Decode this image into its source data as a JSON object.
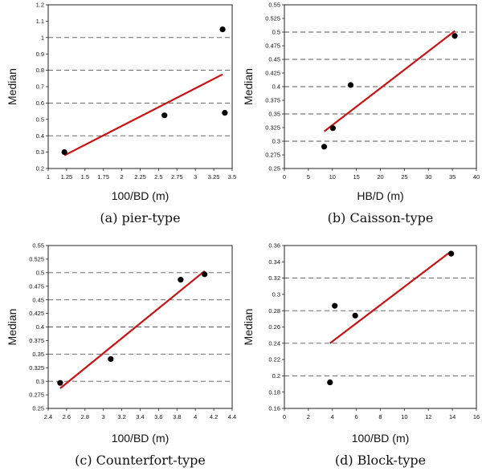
{
  "figure": {
    "panels": [
      "a",
      "b",
      "c",
      "d"
    ]
  },
  "chart_data": [
    {
      "type": "scatter",
      "id": "a",
      "caption": "(a)  pier-type",
      "xlabel": "100/BD (m)",
      "ylabel": "Median",
      "xlim": [
        1,
        3.5
      ],
      "ylim": [
        0.2,
        1.2
      ],
      "xticks": [
        1,
        1.25,
        1.5,
        1.75,
        2,
        2.25,
        2.5,
        2.75,
        3,
        3.25,
        3.5
      ],
      "xtick_labels": [
        "1",
        "1.25",
        "1.5",
        "1.75",
        "2",
        "2.25",
        "2.5",
        "2.75",
        "3",
        "3.25",
        "3.5"
      ],
      "yticks": [
        0.2,
        0.3,
        0.4,
        0.5,
        0.6,
        0.7,
        0.8,
        0.9,
        1,
        1.1,
        1.2
      ],
      "ytick_labels": [
        "0.2",
        "0.3",
        "0.4",
        "0.5",
        "0.6",
        "0.7",
        "0.8",
        "0.9",
        "1",
        "1.1",
        "1.2"
      ],
      "grid_y": [
        0.4,
        0.6,
        0.8,
        1.0
      ],
      "points": [
        {
          "x": 1.22,
          "y": 0.3
        },
        {
          "x": 2.58,
          "y": 0.525
        },
        {
          "x": 3.37,
          "y": 1.05
        },
        {
          "x": 3.4,
          "y": 0.54
        }
      ],
      "fit_line": {
        "x": [
          1.22,
          3.37
        ],
        "y": [
          0.28,
          0.775
        ]
      }
    },
    {
      "type": "scatter",
      "id": "b",
      "caption": "(b)  Caisson-type",
      "xlabel": "HB/D (m)",
      "ylabel": "Median",
      "xlim": [
        0,
        40
      ],
      "ylim": [
        0.25,
        0.55
      ],
      "xticks": [
        0,
        5,
        10,
        15,
        20,
        25,
        30,
        35,
        40
      ],
      "xtick_labels": [
        "0",
        "5",
        "10",
        "15",
        "20",
        "25",
        "30",
        "35",
        "40"
      ],
      "yticks": [
        0.25,
        0.275,
        0.3,
        0.325,
        0.35,
        0.375,
        0.4,
        0.425,
        0.45,
        0.475,
        0.5,
        0.525,
        0.55
      ],
      "ytick_labels": [
        "0.25",
        "0.275",
        "0.3",
        "0.325",
        "0.35",
        "0.375",
        "0.4",
        "0.425",
        "0.45",
        "0.475",
        "0.5",
        "0.525",
        "0.55"
      ],
      "grid_y": [
        0.3,
        0.35,
        0.4,
        0.45,
        0.5
      ],
      "points": [
        {
          "x": 8.3,
          "y": 0.29
        },
        {
          "x": 10.1,
          "y": 0.324
        },
        {
          "x": 13.8,
          "y": 0.403
        },
        {
          "x": 35.5,
          "y": 0.493
        }
      ],
      "fit_line": {
        "x": [
          8.3,
          35.5
        ],
        "y": [
          0.318,
          0.502
        ]
      }
    },
    {
      "type": "scatter",
      "id": "c",
      "caption": "(c)  Counterfort-type",
      "xlabel": "100/BD (m)",
      "ylabel": "Median",
      "xlim": [
        2.4,
        4.4
      ],
      "ylim": [
        0.25,
        0.55
      ],
      "xticks": [
        2.4,
        2.6,
        2.8,
        3,
        3.2,
        3.4,
        3.6,
        3.8,
        4,
        4.2,
        4.4
      ],
      "xtick_labels": [
        "2.4",
        "2.6",
        "2.8",
        "3",
        "3.2",
        "3.4",
        "3.6",
        "3.8",
        "4",
        "4.2",
        "4.4"
      ],
      "yticks": [
        0.25,
        0.275,
        0.3,
        0.325,
        0.35,
        0.375,
        0.4,
        0.425,
        0.45,
        0.475,
        0.5,
        0.525,
        0.55
      ],
      "ytick_labels": [
        "0.25",
        "0.275",
        "0.3",
        "0.325",
        "0.35",
        "0.375",
        "0.4",
        "0.425",
        "0.45",
        "0.475",
        "0.5",
        "0.525",
        "0.55"
      ],
      "grid_y": [
        0.3,
        0.35,
        0.4,
        0.45,
        0.5
      ],
      "points": [
        {
          "x": 2.53,
          "y": 0.297
        },
        {
          "x": 3.08,
          "y": 0.341
        },
        {
          "x": 3.84,
          "y": 0.487
        },
        {
          "x": 4.1,
          "y": 0.497
        }
      ],
      "fit_line": {
        "x": [
          2.53,
          4.1
        ],
        "y": [
          0.287,
          0.503
        ]
      }
    },
    {
      "type": "scatter",
      "id": "d",
      "caption": "(d)  Block-type",
      "xlabel": "100/BD (m)",
      "ylabel": "Median",
      "xlim": [
        0,
        16
      ],
      "ylim": [
        0.16,
        0.36
      ],
      "xticks": [
        0,
        2,
        4,
        6,
        8,
        10,
        12,
        14,
        16
      ],
      "xtick_labels": [
        "0",
        "2",
        "4",
        "6",
        "8",
        "10",
        "12",
        "14",
        "16"
      ],
      "yticks": [
        0.16,
        0.18,
        0.2,
        0.22,
        0.24,
        0.26,
        0.28,
        0.3,
        0.32,
        0.34,
        0.36
      ],
      "ytick_labels": [
        "0.16",
        "0.18",
        "0.2",
        "0.22",
        "0.24",
        "0.26",
        "0.28",
        "0.3",
        "0.32",
        "0.34",
        "0.36"
      ],
      "grid_y": [
        0.2,
        0.24,
        0.28,
        0.32
      ],
      "points": [
        {
          "x": 3.8,
          "y": 0.192
        },
        {
          "x": 4.2,
          "y": 0.286
        },
        {
          "x": 5.9,
          "y": 0.274
        },
        {
          "x": 13.9,
          "y": 0.35
        }
      ],
      "fit_line": {
        "x": [
          3.8,
          13.9
        ],
        "y": [
          0.24,
          0.353
        ]
      }
    }
  ]
}
